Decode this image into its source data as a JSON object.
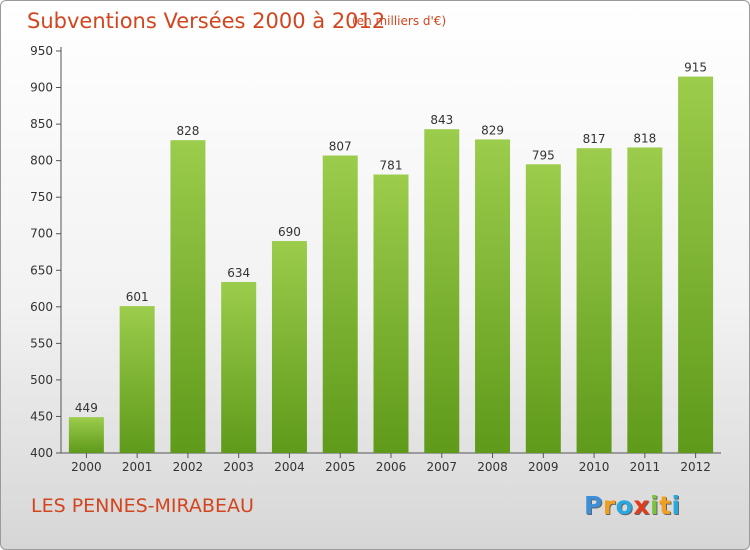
{
  "chart_data": {
    "type": "bar",
    "title": "Subventions Versées 2000 à 2012",
    "subtitle": "(en milliers d'€)",
    "categories": [
      "2000",
      "2001",
      "2002",
      "2003",
      "2004",
      "2005",
      "2006",
      "2007",
      "2008",
      "2009",
      "2010",
      "2011",
      "2012"
    ],
    "values": [
      449,
      601,
      828,
      634,
      690,
      807,
      781,
      843,
      829,
      795,
      817,
      818,
      915
    ],
    "ylim": [
      400,
      950
    ],
    "yticks": [
      400,
      450,
      500,
      550,
      600,
      650,
      700,
      750,
      800,
      850,
      900,
      950
    ],
    "grid": false,
    "colors": {
      "bar_light": "#9ccc4c",
      "bar_dark": "#5f9a1a",
      "text_accent": "#d2451e"
    }
  },
  "place_name": "LES PENNES-MIRABEAU",
  "logo": {
    "letters": [
      {
        "char": "P",
        "color": "#3a8fd8"
      },
      {
        "char": "r",
        "color": "#f0a020"
      },
      {
        "char": "o",
        "color": "#2aa8e0"
      },
      {
        "char": "x",
        "color": "#e03c1e"
      },
      {
        "char": "i",
        "color": "#7cc242"
      },
      {
        "char": "t",
        "color": "#f0a020"
      },
      {
        "char": "i",
        "color": "#2aa8e0"
      }
    ]
  }
}
